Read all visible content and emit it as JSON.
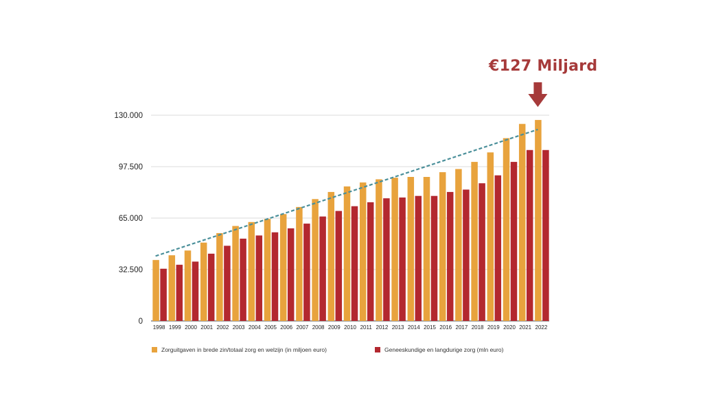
{
  "callout": {
    "text": "€127 Miljard",
    "arrow_color": "#a63a3a"
  },
  "chart_data": {
    "type": "bar",
    "title": "",
    "xlabel": "",
    "ylabel": "",
    "ylim": [
      0,
      130000
    ],
    "yticks": [
      0,
      32500,
      65000,
      97500,
      130000
    ],
    "ytick_labels": [
      "0",
      "32.500",
      "65.000",
      "97.500",
      "130.000"
    ],
    "grid": true,
    "legend_position": "bottom",
    "categories": [
      "1998",
      "1999",
      "2000",
      "2001",
      "2002",
      "2003",
      "2004",
      "2005",
      "2006",
      "2007",
      "2008",
      "2009",
      "2010",
      "2011",
      "2012",
      "2013",
      "2014",
      "2015",
      "2016",
      "2017",
      "2018",
      "2019",
      "2020",
      "2021",
      "2022"
    ],
    "series": [
      {
        "name": "Zorguitgaven in brede zin/totaal zorg en welzijn (in miljoen euro)",
        "color": "#e8a33d",
        "values": [
          38500,
          41500,
          44500,
          49500,
          55500,
          60000,
          62500,
          64500,
          67500,
          72000,
          77000,
          81500,
          85000,
          87500,
          89500,
          90500,
          91000,
          91000,
          94000,
          96000,
          100500,
          106500,
          115500,
          124500,
          127000
        ]
      },
      {
        "name": "Geneeskundige en langdurige zorg (mln euro)",
        "color": "#b3282f",
        "values": [
          33000,
          35500,
          37500,
          42500,
          47500,
          52000,
          54000,
          56000,
          58500,
          61500,
          66000,
          69500,
          72500,
          75000,
          77500,
          78000,
          79000,
          79000,
          81500,
          83000,
          87000,
          92000,
          100500,
          108000,
          108000
        ]
      }
    ],
    "trendline": {
      "color": "#4a8f9a",
      "style": "dashed",
      "from": [
        "1998",
        41000
      ],
      "to": [
        "2022",
        121000
      ]
    }
  }
}
